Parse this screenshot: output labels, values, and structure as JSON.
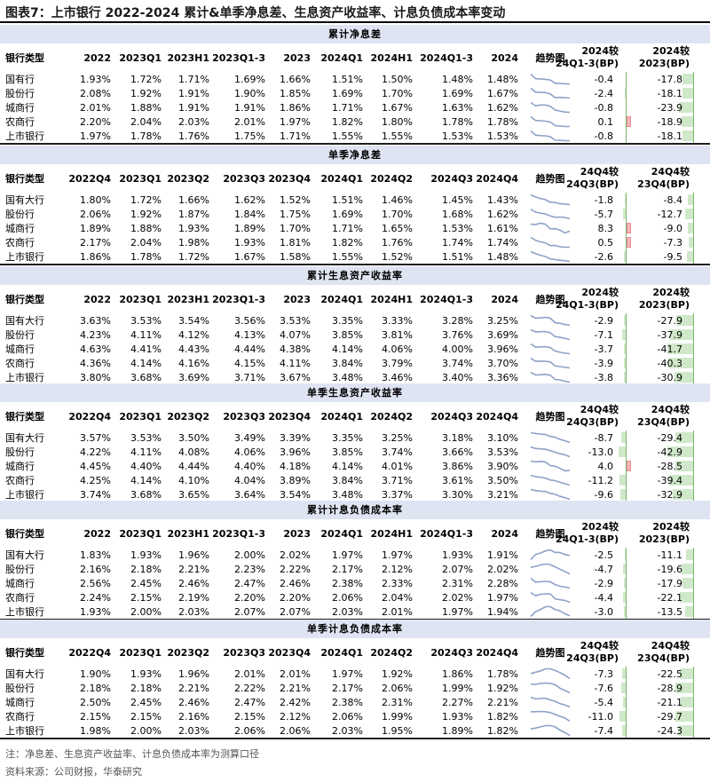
{
  "title": "图表7：上市银行 2022-2024 累计&单季净息差、生息资产收益率、计息负债成本率变动",
  "notes": {
    "note": "注：净息差、生息资产收益率、计息负债成本率为测算口径",
    "source": "资料来源：公司财报，华泰研究"
  },
  "colors": {
    "section_bg": "#dfe4f2",
    "trend_line": "#8da2c8",
    "bar_neg": "#cfe8c9",
    "bar_pos": "#f6b9bd",
    "bar_axis": "#7bb46c"
  },
  "sections": [
    {
      "title": "累计净息差",
      "headers": [
        "银行类型",
        "2022",
        "2023Q1",
        "2023H1",
        "2023Q1-3",
        "2023",
        "2024Q1",
        "2024H1",
        "2024Q1-3",
        "2024",
        "趋势图"
      ],
      "diff_headers": [
        [
          "2024较",
          "24Q1-3(BP)"
        ],
        [
          "2024较",
          "2023(BP)"
        ]
      ],
      "rows": [
        {
          "name": "国有行",
          "values": [
            "1.93%",
            "1.72%",
            "1.71%",
            "1.69%",
            "1.66%",
            "1.51%",
            "1.50%",
            "1.48%",
            "1.48%"
          ],
          "trend": [
            1.93,
            1.72,
            1.71,
            1.69,
            1.66,
            1.51,
            1.5,
            1.48,
            1.48
          ],
          "d1": "-0.4",
          "d2": "-17.8"
        },
        {
          "name": "股份行",
          "values": [
            "2.08%",
            "1.92%",
            "1.91%",
            "1.90%",
            "1.85%",
            "1.69%",
            "1.70%",
            "1.69%",
            "1.67%"
          ],
          "trend": [
            2.08,
            1.92,
            1.91,
            1.9,
            1.85,
            1.69,
            1.7,
            1.69,
            1.67
          ],
          "d1": "-2.4",
          "d2": "-18.1"
        },
        {
          "name": "城商行",
          "values": [
            "2.01%",
            "1.88%",
            "1.91%",
            "1.91%",
            "1.86%",
            "1.71%",
            "1.67%",
            "1.63%",
            "1.62%"
          ],
          "trend": [
            2.01,
            1.88,
            1.91,
            1.91,
            1.86,
            1.71,
            1.67,
            1.63,
            1.62
          ],
          "d1": "-0.8",
          "d2": "-23.9"
        },
        {
          "name": "农商行",
          "values": [
            "2.20%",
            "2.04%",
            "2.03%",
            "2.01%",
            "1.97%",
            "1.82%",
            "1.80%",
            "1.78%",
            "1.78%"
          ],
          "trend": [
            2.2,
            2.04,
            2.03,
            2.01,
            1.97,
            1.82,
            1.8,
            1.78,
            1.78
          ],
          "d1": "0.1",
          "d2": "-18.9"
        },
        {
          "name": "上市银行",
          "values": [
            "1.97%",
            "1.78%",
            "1.76%",
            "1.75%",
            "1.71%",
            "1.55%",
            "1.55%",
            "1.53%",
            "1.53%"
          ],
          "trend": [
            1.97,
            1.78,
            1.76,
            1.75,
            1.71,
            1.55,
            1.55,
            1.53,
            1.53
          ],
          "d1": "-0.8",
          "d2": "-18.1"
        }
      ]
    },
    {
      "title": "单季净息差",
      "headers": [
        "银行类型",
        "2022Q4",
        "2023Q1",
        "2023Q2",
        "2023Q3",
        "2023Q4",
        "2024Q1",
        "2024Q2",
        "2024Q3",
        "2024Q4",
        "趋势图"
      ],
      "diff_headers": [
        [
          "24Q4较",
          "24Q3(BP)"
        ],
        [
          "24Q4较",
          "23Q4(BP)"
        ]
      ],
      "rows": [
        {
          "name": "国有大行",
          "values": [
            "1.80%",
            "1.72%",
            "1.66%",
            "1.62%",
            "1.52%",
            "1.51%",
            "1.46%",
            "1.45%",
            "1.43%"
          ],
          "trend": [
            1.8,
            1.72,
            1.66,
            1.62,
            1.52,
            1.51,
            1.46,
            1.45,
            1.43
          ],
          "d1": "-1.8",
          "d2": "-8.4"
        },
        {
          "name": "股份行",
          "values": [
            "2.06%",
            "1.92%",
            "1.87%",
            "1.84%",
            "1.75%",
            "1.69%",
            "1.70%",
            "1.68%",
            "1.62%"
          ],
          "trend": [
            2.06,
            1.92,
            1.87,
            1.84,
            1.75,
            1.69,
            1.7,
            1.68,
            1.62
          ],
          "d1": "-5.7",
          "d2": "-12.7"
        },
        {
          "name": "城商行",
          "values": [
            "1.89%",
            "1.88%",
            "1.93%",
            "1.89%",
            "1.70%",
            "1.71%",
            "1.65%",
            "1.53%",
            "1.61%"
          ],
          "trend": [
            1.89,
            1.88,
            1.93,
            1.89,
            1.7,
            1.71,
            1.65,
            1.53,
            1.61
          ],
          "d1": "8.3",
          "d2": "-9.0"
        },
        {
          "name": "农商行",
          "values": [
            "2.17%",
            "2.04%",
            "1.98%",
            "1.93%",
            "1.81%",
            "1.82%",
            "1.76%",
            "1.74%",
            "1.74%"
          ],
          "trend": [
            2.17,
            2.04,
            1.98,
            1.93,
            1.81,
            1.82,
            1.76,
            1.74,
            1.74
          ],
          "d1": "0.5",
          "d2": "-7.3"
        },
        {
          "name": "上市银行",
          "values": [
            "1.86%",
            "1.78%",
            "1.72%",
            "1.67%",
            "1.58%",
            "1.55%",
            "1.52%",
            "1.51%",
            "1.48%"
          ],
          "trend": [
            1.86,
            1.78,
            1.72,
            1.67,
            1.58,
            1.55,
            1.52,
            1.51,
            1.48
          ],
          "d1": "-2.6",
          "d2": "-9.5"
        }
      ]
    },
    {
      "title": "累计生息资产收益率",
      "headers": [
        "银行类型",
        "2022",
        "2023Q1",
        "2023H1",
        "2023Q1-3",
        "2023",
        "2024Q1",
        "2024H1",
        "2024Q1-3",
        "2024",
        "趋势图"
      ],
      "diff_headers": [
        [
          "2024较",
          "24Q1-3(BP)"
        ],
        [
          "2024较",
          "2023(BP)"
        ]
      ],
      "rows": [
        {
          "name": "国有大行",
          "values": [
            "3.63%",
            "3.53%",
            "3.54%",
            "3.56%",
            "3.53%",
            "3.35%",
            "3.33%",
            "3.28%",
            "3.25%"
          ],
          "trend": [
            3.63,
            3.53,
            3.54,
            3.56,
            3.53,
            3.35,
            3.33,
            3.28,
            3.25
          ],
          "d1": "-2.9",
          "d2": "-27.9"
        },
        {
          "name": "股份行",
          "values": [
            "4.23%",
            "4.11%",
            "4.12%",
            "4.13%",
            "4.07%",
            "3.85%",
            "3.81%",
            "3.76%",
            "3.69%"
          ],
          "trend": [
            4.23,
            4.11,
            4.12,
            4.13,
            4.07,
            3.85,
            3.81,
            3.76,
            3.69
          ],
          "d1": "-7.1",
          "d2": "-37.9"
        },
        {
          "name": "城商行",
          "values": [
            "4.63%",
            "4.41%",
            "4.43%",
            "4.44%",
            "4.38%",
            "4.14%",
            "4.06%",
            "4.00%",
            "3.96%"
          ],
          "trend": [
            4.63,
            4.41,
            4.43,
            4.44,
            4.38,
            4.14,
            4.06,
            4.0,
            3.96
          ],
          "d1": "-3.7",
          "d2": "-41.7"
        },
        {
          "name": "农商行",
          "values": [
            "4.36%",
            "4.14%",
            "4.16%",
            "4.15%",
            "4.11%",
            "3.84%",
            "3.79%",
            "3.74%",
            "3.70%"
          ],
          "trend": [
            4.36,
            4.14,
            4.16,
            4.15,
            4.11,
            3.84,
            3.79,
            3.74,
            3.7
          ],
          "d1": "-3.9",
          "d2": "-40.3"
        },
        {
          "name": "上市银行",
          "values": [
            "3.80%",
            "3.68%",
            "3.69%",
            "3.71%",
            "3.67%",
            "3.48%",
            "3.46%",
            "3.40%",
            "3.36%"
          ],
          "trend": [
            3.8,
            3.68,
            3.69,
            3.71,
            3.67,
            3.48,
            3.46,
            3.4,
            3.36
          ],
          "d1": "-3.8",
          "d2": "-30.9"
        }
      ]
    },
    {
      "title": "单季生息资产收益率",
      "headers": [
        "银行类型",
        "2022Q4",
        "2023Q1",
        "2023Q2",
        "2023Q3",
        "2023Q4",
        "2024Q1",
        "2024Q2",
        "2024Q3",
        "2024Q4",
        "趋势图"
      ],
      "diff_headers": [
        [
          "24Q4较",
          "24Q3(BP)"
        ],
        [
          "24Q4较",
          "23Q4(BP)"
        ]
      ],
      "rows": [
        {
          "name": "国有大行",
          "values": [
            "3.57%",
            "3.53%",
            "3.50%",
            "3.49%",
            "3.39%",
            "3.35%",
            "3.25%",
            "3.18%",
            "3.10%"
          ],
          "trend": [
            3.57,
            3.53,
            3.5,
            3.49,
            3.39,
            3.35,
            3.25,
            3.18,
            3.1
          ],
          "d1": "-8.7",
          "d2": "-29.4"
        },
        {
          "name": "股份行",
          "values": [
            "4.22%",
            "4.11%",
            "4.08%",
            "4.06%",
            "3.96%",
            "3.85%",
            "3.74%",
            "3.66%",
            "3.53%"
          ],
          "trend": [
            4.22,
            4.11,
            4.08,
            4.06,
            3.96,
            3.85,
            3.74,
            3.66,
            3.53
          ],
          "d1": "-13.0",
          "d2": "-42.9"
        },
        {
          "name": "城商行",
          "values": [
            "4.45%",
            "4.40%",
            "4.44%",
            "4.40%",
            "4.18%",
            "4.14%",
            "4.01%",
            "3.86%",
            "3.90%"
          ],
          "trend": [
            4.45,
            4.4,
            4.44,
            4.4,
            4.18,
            4.14,
            4.01,
            3.86,
            3.9
          ],
          "d1": "4.0",
          "d2": "-28.5"
        },
        {
          "name": "农商行",
          "values": [
            "4.25%",
            "4.14%",
            "4.10%",
            "4.04%",
            "3.89%",
            "3.84%",
            "3.71%",
            "3.61%",
            "3.50%"
          ],
          "trend": [
            4.25,
            4.14,
            4.1,
            4.04,
            3.89,
            3.84,
            3.71,
            3.61,
            3.5
          ],
          "d1": "-11.2",
          "d2": "-39.4"
        },
        {
          "name": "上市银行",
          "values": [
            "3.74%",
            "3.68%",
            "3.65%",
            "3.64%",
            "3.54%",
            "3.48%",
            "3.37%",
            "3.30%",
            "3.21%"
          ],
          "trend": [
            3.74,
            3.68,
            3.65,
            3.64,
            3.54,
            3.48,
            3.37,
            3.3,
            3.21
          ],
          "d1": "-9.6",
          "d2": "-32.9"
        }
      ]
    },
    {
      "title": "累计计息负债成本率",
      "headers": [
        "银行类型",
        "2022",
        "2023Q1",
        "2023H1",
        "2023Q1-3",
        "2023",
        "2024Q1",
        "2024H1",
        "2024Q1-3",
        "2024",
        "趋势图"
      ],
      "diff_headers": [
        [
          "2024较",
          "24Q1-3(BP)"
        ],
        [
          "2024较",
          "2023(BP)"
        ]
      ],
      "rows": [
        {
          "name": "国有大行",
          "values": [
            "1.83%",
            "1.93%",
            "1.96%",
            "2.00%",
            "2.02%",
            "1.97%",
            "1.97%",
            "1.93%",
            "1.91%"
          ],
          "trend": [
            1.83,
            1.93,
            1.96,
            2.0,
            2.02,
            1.97,
            1.97,
            1.93,
            1.91
          ],
          "d1": "-2.5",
          "d2": "-11.1"
        },
        {
          "name": "股份行",
          "values": [
            "2.16%",
            "2.18%",
            "2.21%",
            "2.23%",
            "2.22%",
            "2.17%",
            "2.12%",
            "2.07%",
            "2.02%"
          ],
          "trend": [
            2.16,
            2.18,
            2.21,
            2.23,
            2.22,
            2.17,
            2.12,
            2.07,
            2.02
          ],
          "d1": "-4.7",
          "d2": "-19.6"
        },
        {
          "name": "城商行",
          "values": [
            "2.56%",
            "2.45%",
            "2.46%",
            "2.47%",
            "2.46%",
            "2.38%",
            "2.33%",
            "2.31%",
            "2.28%"
          ],
          "trend": [
            2.56,
            2.45,
            2.46,
            2.47,
            2.46,
            2.38,
            2.33,
            2.31,
            2.28
          ],
          "d1": "-2.9",
          "d2": "-17.9"
        },
        {
          "name": "农商行",
          "values": [
            "2.24%",
            "2.15%",
            "2.19%",
            "2.20%",
            "2.20%",
            "2.06%",
            "2.04%",
            "2.02%",
            "1.97%"
          ],
          "trend": [
            2.24,
            2.15,
            2.19,
            2.2,
            2.2,
            2.06,
            2.04,
            2.02,
            1.97
          ],
          "d1": "-4.4",
          "d2": "-22.1"
        },
        {
          "name": "上市银行",
          "values": [
            "1.93%",
            "2.00%",
            "2.03%",
            "2.07%",
            "2.07%",
            "2.03%",
            "2.01%",
            "1.97%",
            "1.94%"
          ],
          "trend": [
            1.93,
            2.0,
            2.03,
            2.07,
            2.07,
            2.03,
            2.01,
            1.97,
            1.94
          ],
          "d1": "-3.0",
          "d2": "-13.5"
        }
      ]
    },
    {
      "title": "单季计息负债成本率",
      "headers": [
        "银行类型",
        "2022Q4",
        "2023Q1",
        "2023Q2",
        "2023Q3",
        "2023Q4",
        "2024Q1",
        "2024Q2",
        "2024Q3",
        "2024Q4",
        "趋势图"
      ],
      "diff_headers": [
        [
          "24Q4较",
          "24Q3(BP)"
        ],
        [
          "24Q4较",
          "23Q4(BP)"
        ]
      ],
      "rows": [
        {
          "name": "国有大行",
          "values": [
            "1.90%",
            "1.93%",
            "1.96%",
            "2.01%",
            "2.01%",
            "1.97%",
            "1.92%",
            "1.86%",
            "1.78%"
          ],
          "trend": [
            1.9,
            1.93,
            1.96,
            2.01,
            2.01,
            1.97,
            1.92,
            1.86,
            1.78
          ],
          "d1": "-7.3",
          "d2": "-22.5"
        },
        {
          "name": "股份行",
          "values": [
            "2.18%",
            "2.18%",
            "2.21%",
            "2.22%",
            "2.21%",
            "2.17%",
            "2.06%",
            "1.99%",
            "1.92%"
          ],
          "trend": [
            2.18,
            2.18,
            2.21,
            2.22,
            2.21,
            2.17,
            2.06,
            1.99,
            1.92
          ],
          "d1": "-7.6",
          "d2": "-28.9"
        },
        {
          "name": "城商行",
          "values": [
            "2.50%",
            "2.45%",
            "2.46%",
            "2.47%",
            "2.42%",
            "2.38%",
            "2.31%",
            "2.27%",
            "2.21%"
          ],
          "trend": [
            2.5,
            2.45,
            2.46,
            2.47,
            2.42,
            2.38,
            2.31,
            2.27,
            2.21
          ],
          "d1": "-5.4",
          "d2": "-21.1"
        },
        {
          "name": "农商行",
          "values": [
            "2.15%",
            "2.15%",
            "2.16%",
            "2.15%",
            "2.12%",
            "2.06%",
            "1.99%",
            "1.93%",
            "1.82%"
          ],
          "trend": [
            2.15,
            2.15,
            2.16,
            2.15,
            2.12,
            2.06,
            1.99,
            1.93,
            1.82
          ],
          "d1": "-11.0",
          "d2": "-29.7"
        },
        {
          "name": "上市银行",
          "values": [
            "1.98%",
            "2.00%",
            "2.03%",
            "2.06%",
            "2.06%",
            "2.03%",
            "1.95%",
            "1.89%",
            "1.82%"
          ],
          "trend": [
            1.98,
            2.0,
            2.03,
            2.06,
            2.06,
            2.03,
            1.95,
            1.89,
            1.82
          ],
          "d1": "-7.4",
          "d2": "-24.3"
        }
      ]
    }
  ]
}
